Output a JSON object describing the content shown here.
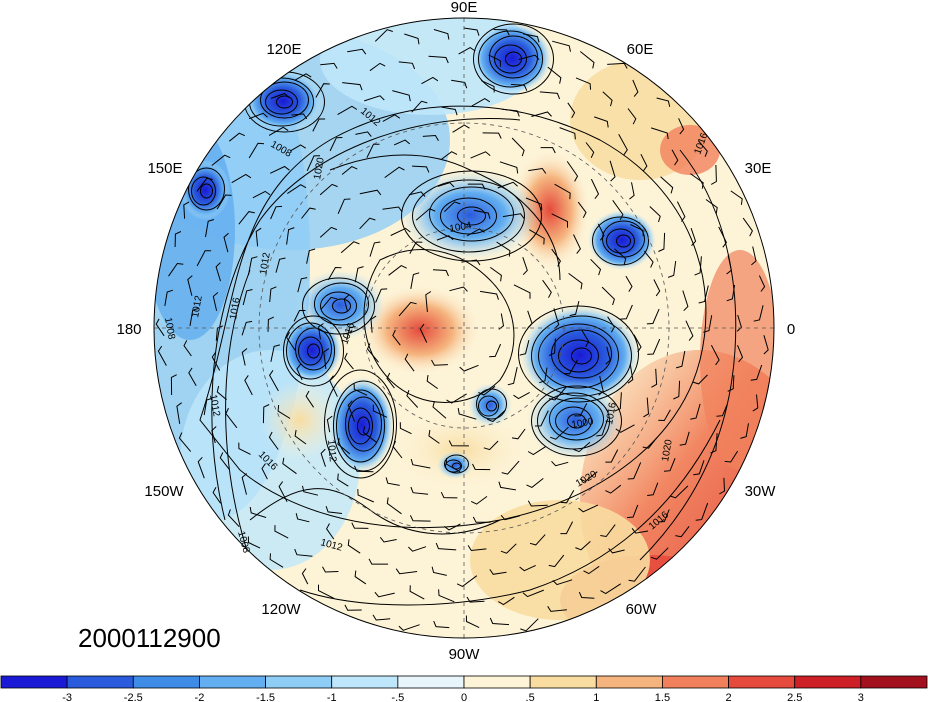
{
  "map": {
    "type": "polar-stereographic",
    "hemisphere": "north",
    "longitude_labels": [
      "90E",
      "60E",
      "30E",
      "0",
      "30W",
      "60W",
      "90W",
      "120W",
      "150W",
      "180",
      "150E",
      "120E"
    ],
    "isobar_labels": [
      "1004",
      "1008",
      "1008",
      "1008",
      "1012",
      "1012",
      "1012",
      "1012",
      "1012",
      "1012",
      "1016",
      "1016",
      "1016",
      "1016",
      "1016",
      "1016",
      "1020",
      "1020",
      "1020",
      "1000"
    ],
    "date": "2000112900"
  },
  "colorbar": {
    "labels": [
      "-3",
      "-2.5",
      "-2",
      "-1.5",
      "-1",
      "-.5",
      "0",
      ".5",
      "1",
      "1.5",
      "2",
      "2.5",
      "3"
    ],
    "colors": [
      "#1a1ad6",
      "#2a5bdc",
      "#3f8ce6",
      "#62aef0",
      "#8ecdf6",
      "#bfe7fb",
      "#e8f6fc",
      "#fdf3d6",
      "#f8dca0",
      "#f5b47e",
      "#f1815c",
      "#e54a3c",
      "#cc1f26",
      "#a2111d"
    ]
  }
}
